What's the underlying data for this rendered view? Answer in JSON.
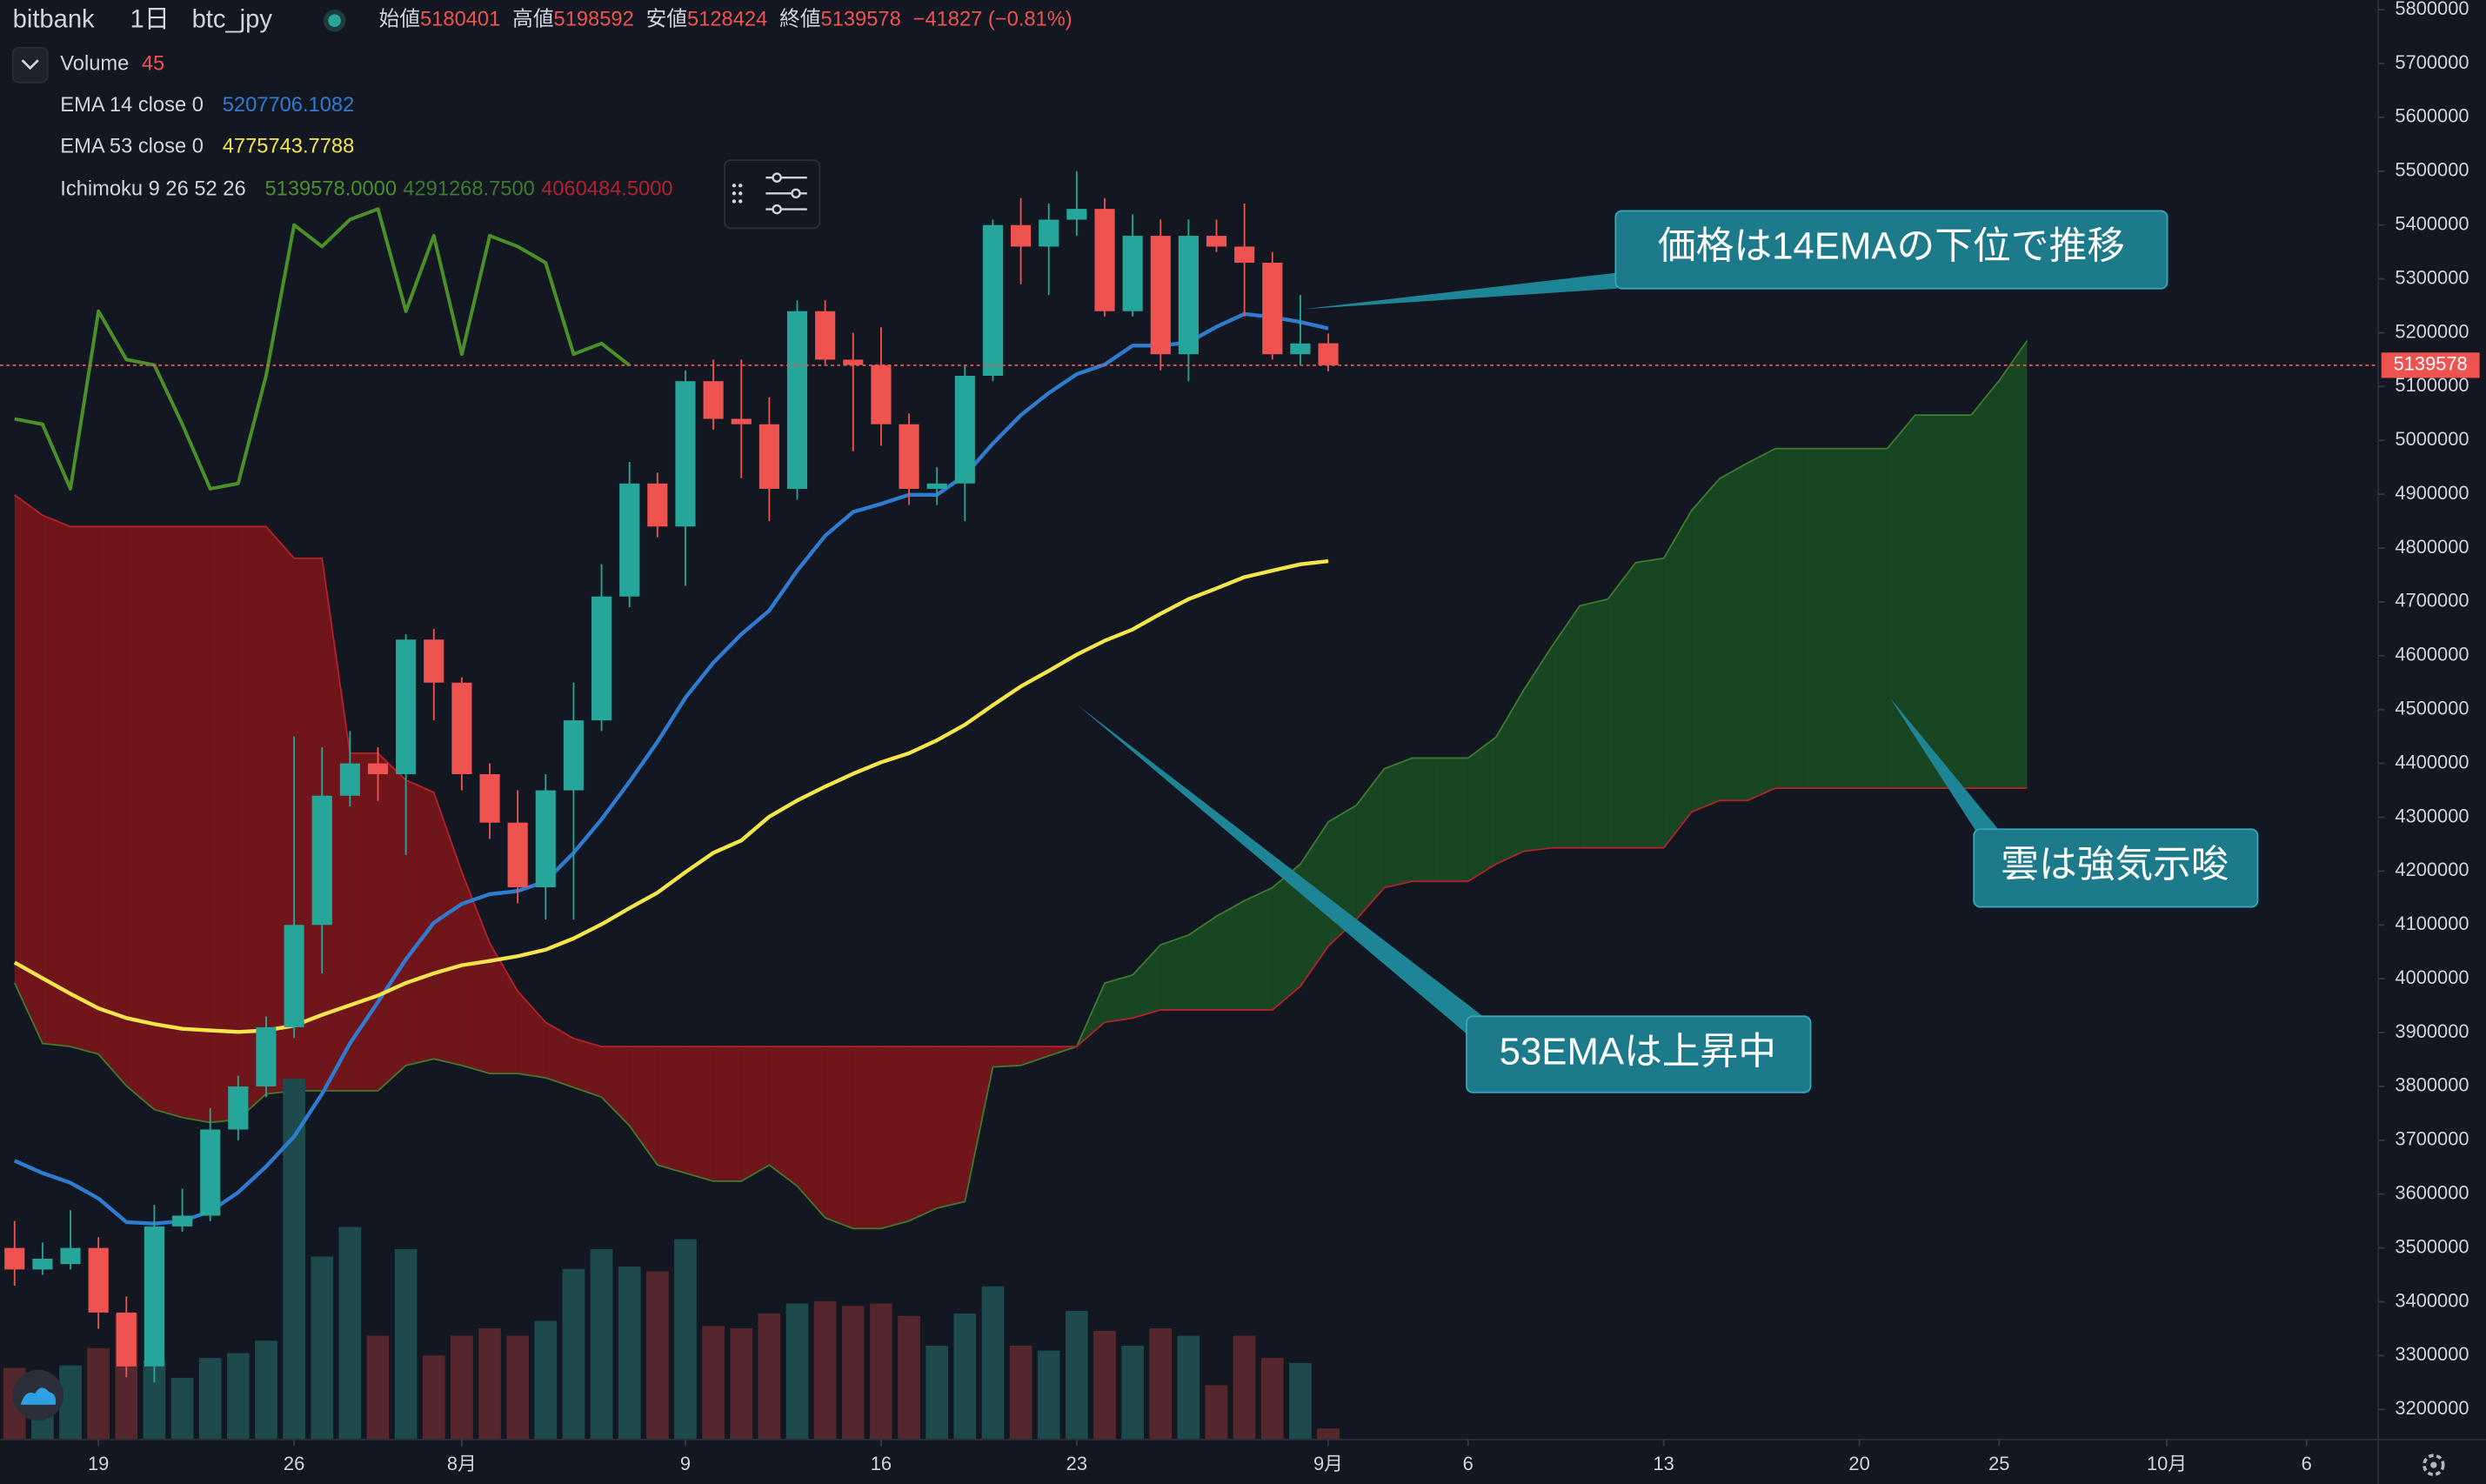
{
  "chart_data": {
    "type": "candlestick",
    "header": {
      "exchange": "bitbank",
      "interval": "1日",
      "symbol": "btc_jpy",
      "open_label": "始値",
      "high_label": "高値",
      "low_label": "安値",
      "close_label": "終値",
      "change": "−41827 (−0.81%)"
    },
    "up_color": "#26a69a",
    "down_color": "#ef5350",
    "x": [
      -3,
      -2,
      -1,
      0,
      1,
      2,
      3,
      4,
      5,
      6,
      7,
      8,
      9,
      10,
      11,
      12,
      13,
      14,
      15,
      16,
      17,
      18,
      19,
      20,
      21,
      22,
      23,
      24,
      25,
      26,
      27,
      28,
      29,
      30,
      31,
      32,
      33,
      34,
      35,
      36,
      37,
      38,
      39,
      40,
      41,
      42,
      43,
      44
    ],
    "open": [
      3500000,
      3460000,
      3470000,
      3500000,
      3380000,
      3280000,
      3540000,
      3560000,
      3720000,
      3800000,
      3910000,
      4100000,
      4340000,
      4400000,
      4380000,
      4630000,
      4550000,
      4380000,
      4290000,
      4170000,
      4350000,
      4480000,
      4710000,
      4920000,
      4840000,
      5110000,
      5040000,
      5030000,
      4910000,
      5240000,
      5150000,
      5140000,
      5030000,
      4910000,
      4920000,
      5120000,
      5400000,
      5360000,
      5410000,
      5430000,
      5240000,
      5380000,
      5160000,
      5380000,
      5360000,
      5330000,
      5160000,
      5180401
    ],
    "high": [
      3550000,
      3510000,
      3570000,
      3520000,
      3410000,
      3580000,
      3610000,
      3760000,
      3820000,
      3930000,
      4450000,
      4430000,
      4460000,
      4430000,
      4640000,
      4650000,
      4560000,
      4400000,
      4350000,
      4380000,
      4550000,
      4770000,
      4960000,
      4940000,
      5130000,
      5150000,
      5150000,
      5080000,
      5260000,
      5260000,
      5200000,
      5210000,
      5050000,
      4950000,
      5140000,
      5410000,
      5450000,
      5440000,
      5500000,
      5450000,
      5420000,
      5410000,
      5410000,
      5410000,
      5440000,
      5350000,
      5270000,
      5198592
    ],
    "low": [
      3430000,
      3450000,
      3460000,
      3350000,
      3260000,
      3250000,
      3530000,
      3550000,
      3700000,
      3780000,
      3890000,
      4010000,
      4320000,
      4330000,
      4230000,
      4480000,
      4350000,
      4260000,
      4140000,
      4110000,
      4110000,
      4460000,
      4690000,
      4820000,
      4730000,
      5020000,
      4930000,
      4850000,
      4890000,
      5140000,
      4980000,
      4990000,
      4880000,
      4880000,
      4850000,
      5110000,
      5290000,
      5270000,
      5380000,
      5230000,
      5230000,
      5130000,
      5110000,
      5350000,
      5230000,
      5150000,
      5140000,
      5128424
    ],
    "close": [
      3460000,
      3480000,
      3500000,
      3380000,
      3280000,
      3540000,
      3560000,
      3720000,
      3800000,
      3910000,
      4100000,
      4340000,
      4400000,
      4380000,
      4630000,
      4550000,
      4380000,
      4290000,
      4170000,
      4350000,
      4480000,
      4710000,
      4920000,
      4840000,
      5110000,
      5040000,
      5030000,
      4910000,
      5240000,
      5150000,
      5140000,
      5030000,
      4910000,
      4920000,
      5120000,
      5400000,
      5360000,
      5410000,
      5430000,
      5240000,
      5380000,
      5160000,
      5380000,
      5360000,
      5330000,
      5160000,
      5180000,
      5139578
    ],
    "volume": {
      "name": "Volume",
      "ylim": [
        0,
        1500
      ],
      "up_color": "#1d4a4d",
      "down_color": "#55272c",
      "values": [
        290,
        250,
        300,
        370,
        510,
        320,
        250,
        330,
        350,
        400,
        1460,
        740,
        860,
        420,
        770,
        340,
        420,
        450,
        420,
        480,
        690,
        770,
        700,
        680,
        810,
        460,
        450,
        510,
        550,
        560,
        540,
        550,
        500,
        380,
        510,
        620,
        380,
        360,
        520,
        440,
        380,
        450,
        420,
        220,
        420,
        330,
        310,
        45
      ]
    },
    "series": [
      {
        "name": "EMA 14 close 0",
        "color": "#2f7bd0",
        "readout": "5207706.1082",
        "values": [
          3662000,
          3639000,
          3621000,
          3592000,
          3548000,
          3545000,
          3550000,
          3568000,
          3603000,
          3651000,
          3707000,
          3786000,
          3880000,
          3957000,
          4036000,
          4104000,
          4139000,
          4157000,
          4163000,
          4181000,
          4234000,
          4296000,
          4366000,
          4440000,
          4522000,
          4587000,
          4640000,
          4684000,
          4758000,
          4823000,
          4867000,
          4882000,
          4899000,
          4899000,
          4935000,
          4994000,
          5047000,
          5088000,
          5123000,
          5141000,
          5176000,
          5176000,
          5182000,
          5211000,
          5235000,
          5229000,
          5220000,
          5207706.1082
        ]
      },
      {
        "name": "EMA 53 close 0",
        "color": "#f4e54a",
        "readout": "4775743.7788",
        "values": [
          4030000,
          4001000,
          3972000,
          3945000,
          3927000,
          3916000,
          3907000,
          3904000,
          3901000,
          3904000,
          3913000,
          3933000,
          3951000,
          3969000,
          3992000,
          4010000,
          4025000,
          4033000,
          4042000,
          4054000,
          4075000,
          4101000,
          4131000,
          4160000,
          4198000,
          4234000,
          4257000,
          4301000,
          4331000,
          4357000,
          4381000,
          4402000,
          4419000,
          4443000,
          4472000,
          4508000,
          4543000,
          4572000,
          4602000,
          4628000,
          4649000,
          4678000,
          4705000,
          4725000,
          4746000,
          4758000,
          4770000,
          4775743.7788
        ]
      }
    ],
    "ichimoku": {
      "name": "Ichimoku 9 26 52 26",
      "up_color": "#1b4b22",
      "down_color": "#7b1619",
      "lagging": {
        "color": "#4a8f27",
        "readout": "5139578.0000",
        "x": [
          -3,
          -2,
          -1,
          0,
          1,
          2,
          3,
          4,
          5,
          6,
          7,
          8,
          9,
          10,
          11,
          12,
          13,
          14,
          15,
          16,
          17,
          18,
          19
        ],
        "values": [
          5040000,
          5030000,
          4910000,
          5240000,
          5150000,
          5140000,
          5030000,
          4910000,
          4920000,
          5120000,
          5400000,
          5360000,
          5410000,
          5430000,
          5240000,
          5380000,
          5160000,
          5380000,
          5360000,
          5330000,
          5160000,
          5180000,
          5139578
        ]
      },
      "x": [
        -3,
        -2,
        -1,
        0,
        1,
        2,
        3,
        4,
        5,
        6,
        7,
        8,
        9,
        10,
        11,
        12,
        13,
        14,
        15,
        16,
        17,
        18,
        19,
        20,
        21,
        22,
        23,
        24,
        25,
        26,
        27,
        28,
        29,
        30,
        31,
        32,
        33,
        34,
        35,
        36,
        37,
        38,
        39,
        40,
        41,
        42,
        43,
        44,
        45,
        46,
        47,
        48,
        49,
        50,
        51,
        52,
        53,
        54,
        55,
        56,
        57,
        58,
        59,
        60,
        61,
        62,
        63,
        64,
        65,
        66,
        67,
        68,
        69
      ],
      "span_a": {
        "color": "#3d7a2c",
        "readout": "4291268.7500",
        "values": [
          3992000,
          3880000,
          3874000,
          3860000,
          3801000,
          3757000,
          3742000,
          3733000,
          3739000,
          3786000,
          3792000,
          3792000,
          3792000,
          3792000,
          3839000,
          3851000,
          3839000,
          3824000,
          3824000,
          3816000,
          3798000,
          3780000,
          3727000,
          3654000,
          3639000,
          3624000,
          3624000,
          3654000,
          3615000,
          3556000,
          3536000,
          3536000,
          3550000,
          3574000,
          3586000,
          3836000,
          3839000,
          3857000,
          3874000,
          3992000,
          4007000,
          4063000,
          4081000,
          4116000,
          4145000,
          4169000,
          4213000,
          4291268.75,
          4322000,
          4390000,
          4410000,
          4410000,
          4410000,
          4449000,
          4537000,
          4617000,
          4693000,
          4705000,
          4773000,
          4781000,
          4870000,
          4929000,
          4958000,
          4985000,
          4985000,
          4985000,
          4985000,
          4985000,
          5047000,
          5047000,
          5047000,
          5111000,
          5185000
        ]
      },
      "span_b": {
        "color": "#b3222a",
        "readout": "4060484.5000",
        "values": [
          4899000,
          4861000,
          4840000,
          4840000,
          4840000,
          4840000,
          4840000,
          4840000,
          4840000,
          4840000,
          4781000,
          4781000,
          4419000,
          4419000,
          4369000,
          4346000,
          4198000,
          4066000,
          3977000,
          3919000,
          3889000,
          3874000,
          3874000,
          3874000,
          3874000,
          3874000,
          3874000,
          3874000,
          3874000,
          3874000,
          3874000,
          3874000,
          3874000,
          3874000,
          3874000,
          3874000,
          3874000,
          3874000,
          3874000,
          3919000,
          3927000,
          3942000,
          3942000,
          3942000,
          3942000,
          3942000,
          3986000,
          4060484.5,
          4110000,
          4169000,
          4181000,
          4181000,
          4181000,
          4213000,
          4237000,
          4243000,
          4243000,
          4243000,
          4243000,
          4243000,
          4310000,
          4331000,
          4331000,
          4354000,
          4354000,
          4354000,
          4354000,
          4354000,
          4354000,
          4354000,
          4354000,
          4354000,
          4354000
        ]
      }
    },
    "xlim": [
      -3.52,
      81.56
    ],
    "xticks": [
      {
        "value": 0,
        "label": "19"
      },
      {
        "value": 7,
        "label": "26"
      },
      {
        "value": 13,
        "label": "8月"
      },
      {
        "value": 21,
        "label": "9"
      },
      {
        "value": 28,
        "label": "16"
      },
      {
        "value": 35,
        "label": "23"
      },
      {
        "value": 44,
        "label": "9月"
      },
      {
        "value": 49,
        "label": "6"
      },
      {
        "value": 56,
        "label": "13"
      },
      {
        "value": 63,
        "label": "20"
      },
      {
        "value": 68,
        "label": "25"
      },
      {
        "value": 74,
        "label": "10月"
      },
      {
        "value": 79,
        "label": "6"
      }
    ],
    "ylim": [
      3144000,
      5818000
    ],
    "yticks": [
      3200000,
      3300000,
      3400000,
      3500000,
      3600000,
      3700000,
      3800000,
      3900000,
      4000000,
      4100000,
      4200000,
      4300000,
      4400000,
      4500000,
      4600000,
      4700000,
      4800000,
      4900000,
      5000000,
      5100000,
      5200000,
      5300000,
      5400000,
      5500000,
      5600000,
      5700000,
      5800000
    ],
    "annotations": [
      {
        "text": "価格は14EMAの下位で推移"
      },
      {
        "text": "53EMAは上昇中"
      },
      {
        "text": "雲は強気示唆"
      }
    ]
  }
}
